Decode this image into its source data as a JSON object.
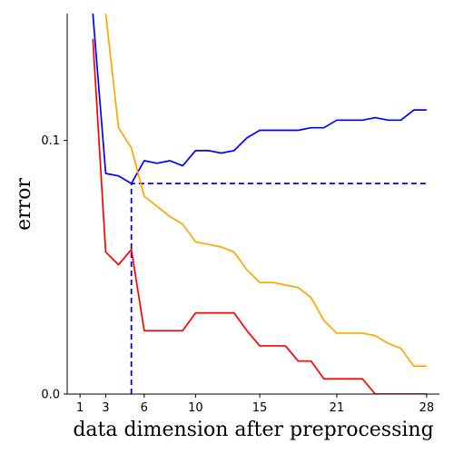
{
  "chart_data": {
    "type": "line",
    "xlabel": "data dimension after preprocessing",
    "ylabel": "error",
    "xlim": [
      0,
      29
    ],
    "ylim": [
      0,
      0.15
    ],
    "xticks": [
      1,
      3,
      6,
      10,
      15,
      21,
      28
    ],
    "yticks": [
      0.0,
      0.1
    ],
    "ytick_labels": [
      "0.0",
      "0.1"
    ],
    "grid": false,
    "series": [
      {
        "color": "#0000ff",
        "x": [
          2,
          3,
          4,
          5,
          6,
          7,
          8,
          9,
          10,
          11,
          12,
          13,
          14,
          15,
          16,
          17,
          18,
          19,
          20,
          21,
          22,
          23,
          24,
          25,
          26,
          27,
          28
        ],
        "values": [
          0.15,
          0.087,
          0.086,
          0.083,
          0.092,
          0.091,
          0.092,
          0.09,
          0.096,
          0.096,
          0.095,
          0.096,
          0.101,
          0.104,
          0.104,
          0.104,
          0.104,
          0.105,
          0.105,
          0.108,
          0.108,
          0.108,
          0.109,
          0.108,
          0.108,
          0.112,
          0.112
        ]
      },
      {
        "color": "#ffa500",
        "x": [
          3,
          4,
          5,
          6,
          7,
          8,
          9,
          10,
          11,
          12,
          13,
          14,
          15,
          16,
          17,
          18,
          19,
          20,
          21,
          22,
          23,
          24,
          25,
          26,
          27,
          28
        ],
        "values": [
          0.15,
          0.105,
          0.097,
          0.078,
          0.074,
          0.07,
          0.067,
          0.06,
          0.059,
          0.058,
          0.056,
          0.049,
          0.044,
          0.044,
          0.043,
          0.042,
          0.038,
          0.029,
          0.024,
          0.024,
          0.024,
          0.023,
          0.02,
          0.018,
          0.011,
          0.011
        ]
      },
      {
        "color": "#ff0000",
        "x": [
          2,
          3,
          4,
          5,
          6,
          7,
          8,
          9,
          10,
          11,
          12,
          13,
          14,
          15,
          16,
          17,
          18,
          19,
          20,
          21,
          22,
          23,
          24,
          25,
          26,
          27,
          28
        ],
        "values": [
          0.14,
          0.056,
          0.051,
          0.057,
          0.025,
          0.025,
          0.025,
          0.025,
          0.032,
          0.032,
          0.032,
          0.032,
          0.025,
          0.019,
          0.019,
          0.019,
          0.013,
          0.013,
          0.006,
          0.006,
          0.006,
          0.006,
          0.0,
          0.0,
          0.0,
          0.0,
          0.0
        ]
      }
    ],
    "annotations": [
      {
        "kind": "dashed-line",
        "color": "#0000cd",
        "x": [
          5,
          5,
          28
        ],
        "y": [
          0.0,
          0.083,
          0.083
        ]
      }
    ]
  }
}
